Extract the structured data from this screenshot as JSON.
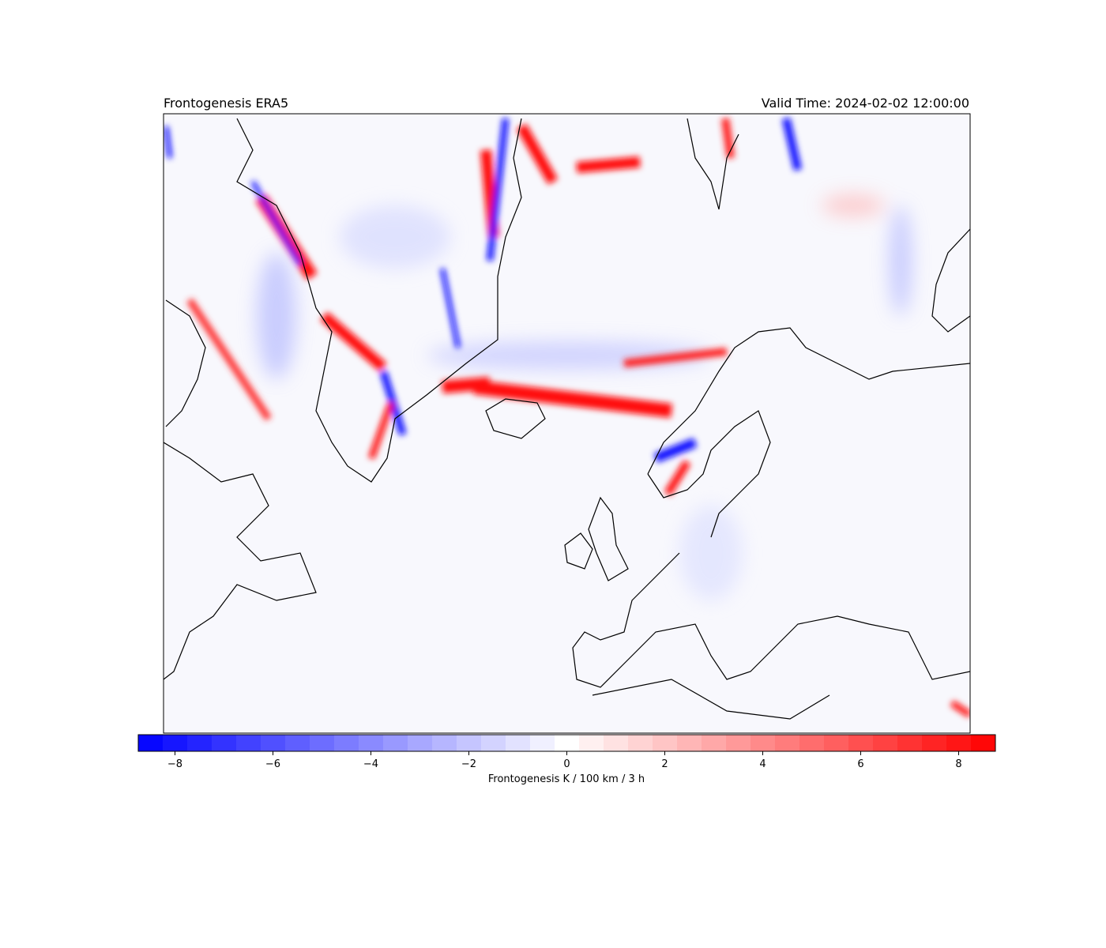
{
  "chart_data": {
    "type": "map",
    "title_left": "Frontogenesis ERA5",
    "title_right": "Valid Time: 2024-02-02 12:00:00",
    "colorbar": {
      "label": "Frontogenesis K / 100 km / 3 h",
      "vmin": -8.75,
      "vmax": 8.75,
      "step": 0.5,
      "cmap": [
        "#0000ff",
        "#ffffff",
        "#ff0000"
      ],
      "ticks": [
        {
          "value": -8,
          "label": "−8"
        },
        {
          "value": -6,
          "label": "−6"
        },
        {
          "value": -4,
          "label": "−4"
        },
        {
          "value": -2,
          "label": "−2"
        },
        0,
        2,
        4,
        6,
        8
      ]
    }
  }
}
